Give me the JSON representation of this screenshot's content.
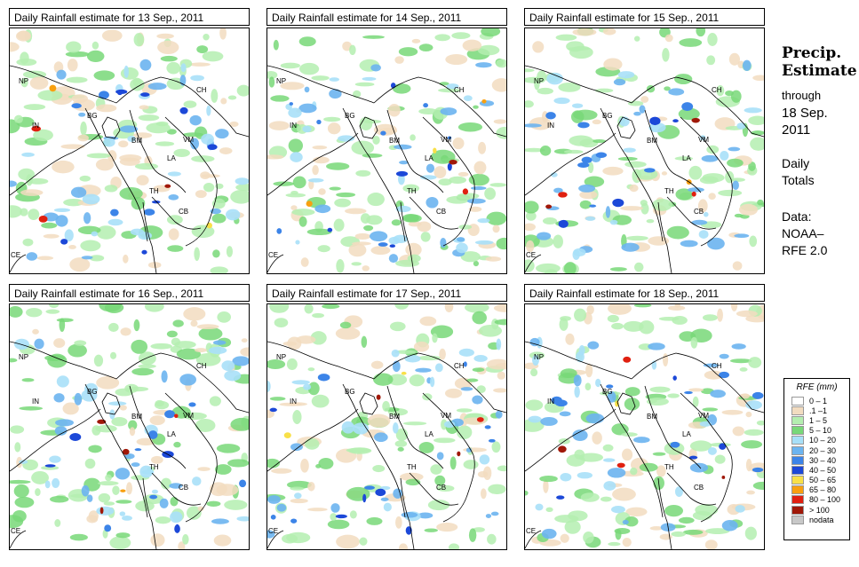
{
  "panels": [
    {
      "title": "Daily Rainfall estimate for  13 Sep., 2011",
      "day": 13
    },
    {
      "title": "Daily Rainfall estimate for  14 Sep., 2011",
      "day": 14
    },
    {
      "title": "Daily Rainfall estimate for  15 Sep., 2011",
      "day": 15
    },
    {
      "title": "Daily Rainfall estimate for  16 Sep., 2011",
      "day": 16
    },
    {
      "title": "Daily Rainfall estimate for  17 Sep., 2011",
      "day": 17
    },
    {
      "title": "Daily Rainfall estimate for  18 Sep., 2011",
      "day": 18
    }
  ],
  "country_labels": [
    "NP",
    "IN",
    "BG",
    "CH",
    "BM",
    "VM",
    "LA",
    "TH",
    "CB",
    "CE"
  ],
  "sidebar": {
    "title_line1": "Precip.",
    "title_line2": "Estimate",
    "through": "through",
    "date_line1": "18 Sep.",
    "date_line2": "2011",
    "daily1": "Daily",
    "daily2": "Totals",
    "data1": "Data:",
    "data2": "NOAA–",
    "data3": "RFE 2.0"
  },
  "legend": {
    "title": "RFE (mm)",
    "items": [
      {
        "label": "0 – 1",
        "color": "#ffffff"
      },
      {
        "label": ".1 –1",
        "color": "#f2dcc0"
      },
      {
        "label": "1 – 5",
        "color": "#b4eeb0"
      },
      {
        "label": "5 – 10",
        "color": "#78d878"
      },
      {
        "label": "10 – 20",
        "color": "#a8e0f8"
      },
      {
        "label": "20 – 30",
        "color": "#6cb4f0"
      },
      {
        "label": "30 – 40",
        "color": "#3c84e8"
      },
      {
        "label": "40 – 50",
        "color": "#1c48d8"
      },
      {
        "label": "50 – 65",
        "color": "#f8e048"
      },
      {
        "label": "65 – 80",
        "color": "#f8a010"
      },
      {
        "label": "80 – 100",
        "color": "#e02010"
      },
      {
        "label": "> 100",
        "color": "#a01808"
      },
      {
        "label": "nodata",
        "color": "#c8c8c8"
      }
    ]
  }
}
